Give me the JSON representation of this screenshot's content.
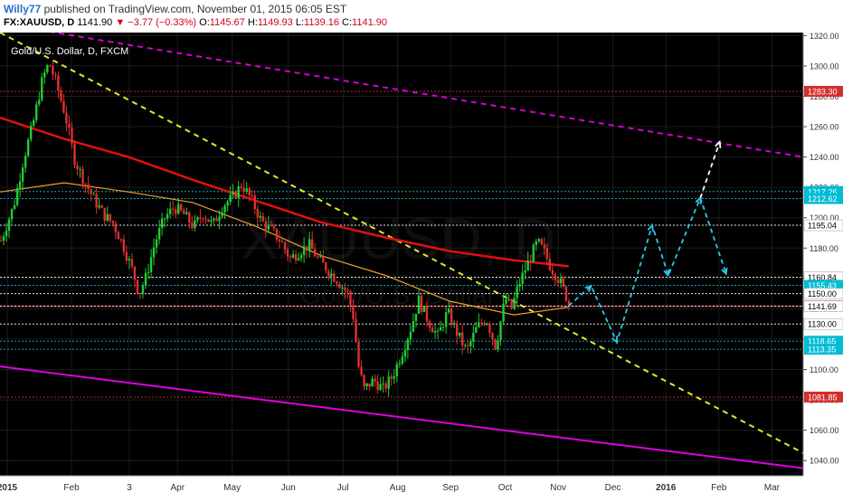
{
  "header": {
    "author": "Willy77",
    "published": "published on TradingView.com, November 01, 2015 06:05 EST",
    "symbol": "FX:XAUUSD, D",
    "last": "1141.90",
    "change": "−3.77 (−0.33%)",
    "open_label": "O:",
    "open": "1145.67",
    "high_label": "H:",
    "high": "1149.93",
    "low_label": "L:",
    "low": "1139.16",
    "close_label": "C:",
    "close": "1141.90"
  },
  "chart_data": {
    "type": "candlestick",
    "title": "Gold/U.S. Dollar, D, FXCM",
    "watermark": "XAUUSD, D",
    "watermark_sub": "Gold/U.S. Dollar",
    "xlabel": "",
    "ylabel": "",
    "ylim": [
      1030,
      1322
    ],
    "x_ticks": [
      "2015",
      "Feb",
      "3",
      "Apr",
      "May",
      "Jun",
      "Jul",
      "Aug",
      "Sep",
      "Oct",
      "Nov",
      "Dec",
      "2016",
      "Feb",
      "Mar"
    ],
    "y_ticks": [
      "1320.00",
      "1300.00",
      "1280.00",
      "1260.00",
      "1240.00",
      "1220.00",
      "1200.00",
      "1180.00",
      "1160.00",
      "1140.00",
      "1120.00",
      "1100.00",
      "1080.00",
      "1060.00",
      "1040.00"
    ],
    "price_path": [
      [
        0,
        1185
      ],
      [
        8,
        1208
      ],
      [
        14,
        1238
      ],
      [
        20,
        1262
      ],
      [
        26,
        1292
      ],
      [
        30,
        1302
      ],
      [
        34,
        1290
      ],
      [
        40,
        1268
      ],
      [
        46,
        1238
      ],
      [
        52,
        1224
      ],
      [
        58,
        1212
      ],
      [
        64,
        1202
      ],
      [
        70,
        1196
      ],
      [
        76,
        1182
      ],
      [
        82,
        1165
      ],
      [
        86,
        1150
      ],
      [
        90,
        1160
      ],
      [
        96,
        1184
      ],
      [
        102,
        1200
      ],
      [
        108,
        1207
      ],
      [
        114,
        1202
      ],
      [
        120,
        1194
      ],
      [
        126,
        1203
      ],
      [
        132,
        1195
      ],
      [
        138,
        1208
      ],
      [
        144,
        1213
      ],
      [
        150,
        1222
      ],
      [
        156,
        1212
      ],
      [
        162,
        1198
      ],
      [
        168,
        1192
      ],
      [
        174,
        1185
      ],
      [
        180,
        1173
      ],
      [
        186,
        1178
      ],
      [
        192,
        1182
      ],
      [
        198,
        1172
      ],
      [
        204,
        1165
      ],
      [
        210,
        1158
      ],
      [
        216,
        1150
      ],
      [
        220,
        1132
      ],
      [
        222,
        1105
      ],
      [
        226,
        1087
      ],
      [
        232,
        1093
      ],
      [
        238,
        1087
      ],
      [
        244,
        1096
      ],
      [
        250,
        1112
      ],
      [
        256,
        1130
      ],
      [
        260,
        1146
      ],
      [
        266,
        1132
      ],
      [
        272,
        1122
      ],
      [
        278,
        1138
      ],
      [
        284,
        1124
      ],
      [
        290,
        1112
      ],
      [
        296,
        1127
      ],
      [
        302,
        1134
      ],
      [
        308,
        1115
      ],
      [
        314,
        1147
      ],
      [
        318,
        1140
      ],
      [
        322,
        1155
      ],
      [
        328,
        1170
      ],
      [
        334,
        1184
      ],
      [
        338,
        1178
      ],
      [
        342,
        1168
      ],
      [
        348,
        1158
      ],
      [
        352,
        1148
      ],
      [
        354,
        1141.9
      ]
    ],
    "ma_200_red": [
      [
        0,
        1266
      ],
      [
        40,
        1252
      ],
      [
        80,
        1240
      ],
      [
        120,
        1225
      ],
      [
        160,
        1211
      ],
      [
        200,
        1197
      ],
      [
        240,
        1187
      ],
      [
        280,
        1178
      ],
      [
        320,
        1172
      ],
      [
        354,
        1168
      ]
    ],
    "ma_orange": [
      [
        0,
        1217
      ],
      [
        40,
        1223
      ],
      [
        80,
        1217
      ],
      [
        120,
        1210
      ],
      [
        160,
        1194
      ],
      [
        200,
        1175
      ],
      [
        240,
        1162
      ],
      [
        280,
        1145
      ],
      [
        320,
        1136
      ],
      [
        354,
        1141
      ]
    ],
    "horizontal_levels": [
      {
        "value": 1283.3,
        "label": "1283.30",
        "color": "#d32f2f",
        "style": "dotted-red"
      },
      {
        "value": 1217.26,
        "label": "1217.26",
        "color": "#00bcd4",
        "style": "dotted-cyan"
      },
      {
        "value": 1212.62,
        "label": "1212.62",
        "color": "#00bcd4",
        "style": "dotted-cyan"
      },
      {
        "value": 1195.04,
        "label": "1195.04",
        "color": "#ffffff",
        "style": "dotted-white"
      },
      {
        "value": 1160.84,
        "label": "1160.84",
        "color": "#ffffff",
        "style": "dotted-white"
      },
      {
        "value": 1155.43,
        "label": "1155.43",
        "color": "#00bcd4",
        "style": "dotted-cyan"
      },
      {
        "value": 1150.0,
        "label": "1150.00",
        "color": "#ffffff",
        "style": "dotted-white"
      },
      {
        "value": 1141.9,
        "label": "1141.90",
        "color": "#d32f2f",
        "style": "price"
      },
      {
        "value": 1141.69,
        "label": "1141.69",
        "color": "#ffffff",
        "style": "dotted-white"
      },
      {
        "value": 1130.0,
        "label": "1130.00",
        "color": "#ffffff",
        "style": "dotted-white"
      },
      {
        "value": 1118.65,
        "label": "1118.65",
        "color": "#00bcd4",
        "style": "dotted-cyan"
      },
      {
        "value": 1113.35,
        "label": "1113.35",
        "color": "#00bcd4",
        "style": "dotted-cyan"
      },
      {
        "value": 1081.85,
        "label": "1081.85",
        "color": "#d32f2f",
        "style": "dotted-red"
      }
    ],
    "trendlines": [
      {
        "name": "upper-channel",
        "color": "#d500d5",
        "dashed": true,
        "from": [
          0,
          1328
        ],
        "to": [
          500,
          1240
        ]
      },
      {
        "name": "lower-channel",
        "color": "#e100e1",
        "dashed": false,
        "from": [
          0,
          1102
        ],
        "to": [
          500,
          1035
        ]
      },
      {
        "name": "falling-trend",
        "color": "#e6e62e",
        "dashed": true,
        "from": [
          0,
          1322
        ],
        "to": [
          500,
          1045
        ]
      }
    ],
    "projection": {
      "color": "#29c9e6",
      "points": [
        [
          354,
          1142
        ],
        [
          368,
          1155
        ],
        [
          384,
          1118
        ],
        [
          406,
          1195
        ],
        [
          416,
          1162
        ],
        [
          436,
          1213
        ],
        [
          452,
          1163
        ]
      ]
    },
    "projection_final": {
      "color": "#ffffff",
      "from": [
        436,
        1213
      ],
      "to": [
        448,
        1250
      ]
    }
  }
}
